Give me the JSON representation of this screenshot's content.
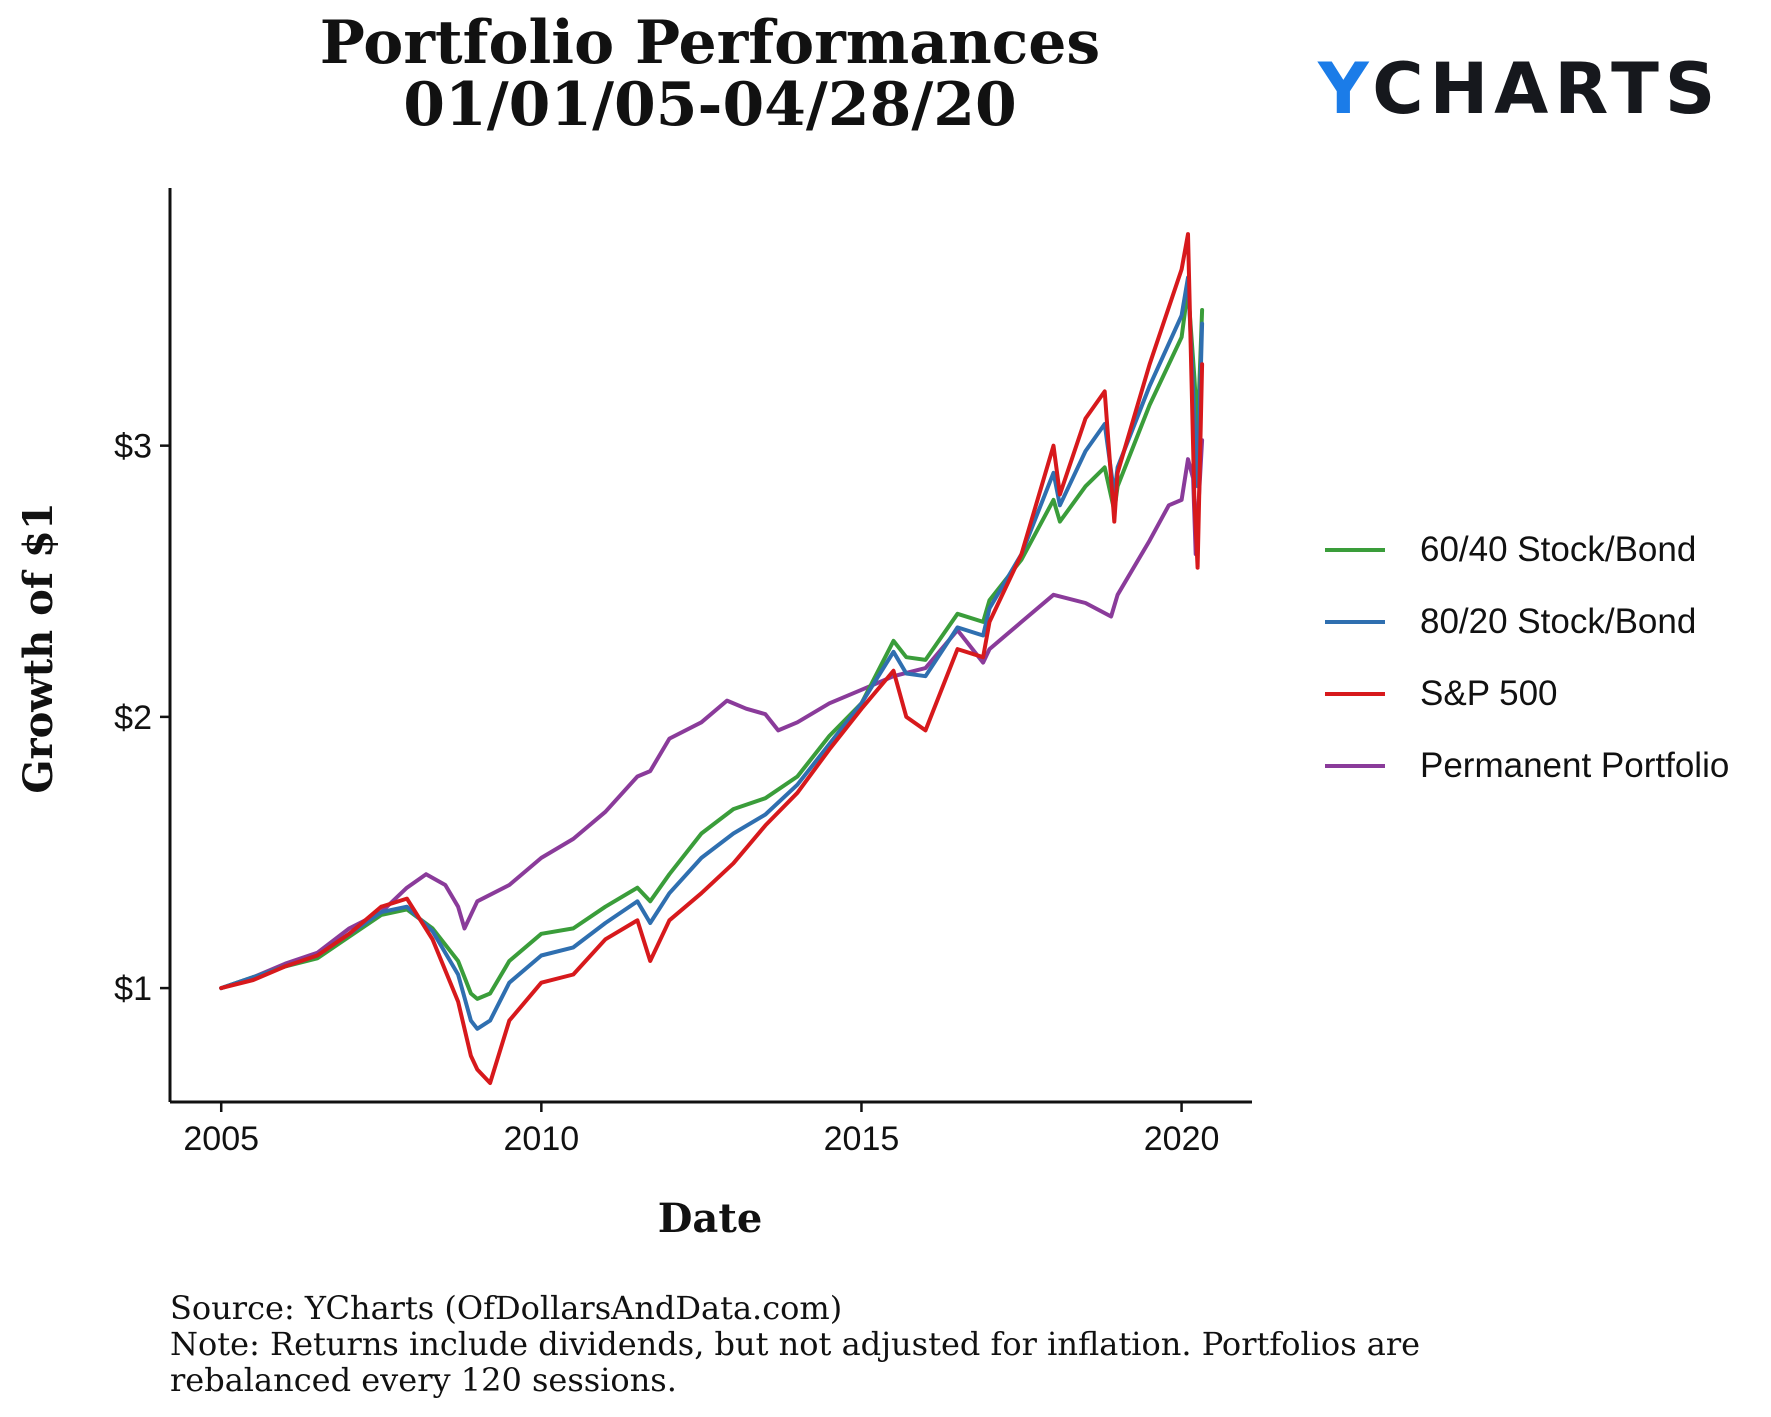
{
  "title_line1": "Portfolio Performances",
  "title_line2": "01/01/05-04/28/20",
  "logo": {
    "y": "Y",
    "rest": "CHARTS"
  },
  "footer": {
    "source": "Source: YCharts (OfDollarsAndData.com)",
    "note1": "Note: Returns include dividends, but not adjusted for inflation. Portfolios are",
    "note2": "rebalanced every 120 sessions."
  },
  "chart_data": {
    "type": "line",
    "title": "Portfolio Performances 01/01/05-04/28/20",
    "xlabel": "Date",
    "ylabel": "Growth of $1",
    "xlim": [
      2004.2,
      2021.1
    ],
    "ylim": [
      0.58,
      3.95
    ],
    "x_ticks": [
      2005,
      2010,
      2015,
      2020
    ],
    "x_tick_labels": [
      "2005",
      "2010",
      "2015",
      "2020"
    ],
    "y_ticks": [
      1,
      2,
      3
    ],
    "y_tick_labels": [
      "$1",
      "$2",
      "$3"
    ],
    "grid": false,
    "legend_position": "right",
    "series": [
      {
        "name": "60/40 Stock/Bond",
        "color": "#3a9d3a",
        "x": [
          2005.0,
          2005.5,
          2006.0,
          2006.5,
          2007.0,
          2007.5,
          2007.9,
          2008.3,
          2008.7,
          2008.9,
          2009.0,
          2009.2,
          2009.5,
          2010.0,
          2010.5,
          2011.0,
          2011.5,
          2011.7,
          2012.0,
          2012.5,
          2013.0,
          2013.5,
          2014.0,
          2014.5,
          2015.0,
          2015.5,
          2015.7,
          2016.0,
          2016.5,
          2016.9,
          2017.0,
          2017.5,
          2018.0,
          2018.1,
          2018.5,
          2018.8,
          2018.95,
          2019.0,
          2019.5,
          2020.0,
          2020.1,
          2020.2,
          2020.25,
          2020.32
        ],
        "values": [
          1.0,
          1.04,
          1.08,
          1.11,
          1.19,
          1.27,
          1.29,
          1.22,
          1.1,
          0.98,
          0.96,
          0.98,
          1.1,
          1.2,
          1.22,
          1.3,
          1.37,
          1.32,
          1.42,
          1.57,
          1.66,
          1.7,
          1.78,
          1.93,
          2.05,
          2.28,
          2.22,
          2.21,
          2.38,
          2.35,
          2.43,
          2.58,
          2.8,
          2.72,
          2.85,
          2.92,
          2.76,
          2.85,
          3.15,
          3.4,
          3.58,
          3.25,
          3.05,
          3.5
        ]
      },
      {
        "name": "80/20 Stock/Bond",
        "color": "#2f6fb0",
        "x": [
          2005.0,
          2005.5,
          2006.0,
          2006.5,
          2007.0,
          2007.5,
          2007.9,
          2008.3,
          2008.7,
          2008.9,
          2009.0,
          2009.2,
          2009.5,
          2010.0,
          2010.5,
          2011.0,
          2011.5,
          2011.7,
          2012.0,
          2012.5,
          2013.0,
          2013.5,
          2014.0,
          2014.5,
          2015.0,
          2015.5,
          2015.7,
          2016.0,
          2016.5,
          2016.9,
          2017.0,
          2017.5,
          2018.0,
          2018.1,
          2018.5,
          2018.8,
          2018.95,
          2019.0,
          2019.5,
          2020.0,
          2020.1,
          2020.2,
          2020.25,
          2020.32
        ],
        "values": [
          1.0,
          1.04,
          1.08,
          1.12,
          1.2,
          1.28,
          1.3,
          1.21,
          1.05,
          0.88,
          0.85,
          0.88,
          1.02,
          1.12,
          1.15,
          1.24,
          1.32,
          1.24,
          1.35,
          1.48,
          1.57,
          1.64,
          1.75,
          1.9,
          2.05,
          2.24,
          2.16,
          2.15,
          2.33,
          2.3,
          2.4,
          2.6,
          2.9,
          2.78,
          2.98,
          3.08,
          2.82,
          2.92,
          3.22,
          3.48,
          3.62,
          3.1,
          2.85,
          3.45
        ]
      },
      {
        "name": "S&P 500",
        "color": "#d7191c",
        "x": [
          2005.0,
          2005.5,
          2006.0,
          2006.5,
          2007.0,
          2007.5,
          2007.9,
          2008.3,
          2008.7,
          2008.9,
          2009.0,
          2009.2,
          2009.5,
          2010.0,
          2010.5,
          2011.0,
          2011.5,
          2011.7,
          2012.0,
          2012.5,
          2013.0,
          2013.5,
          2014.0,
          2014.5,
          2015.0,
          2015.5,
          2015.7,
          2016.0,
          2016.5,
          2016.9,
          2017.0,
          2017.5,
          2018.0,
          2018.1,
          2018.5,
          2018.8,
          2018.95,
          2019.0,
          2019.5,
          2020.0,
          2020.1,
          2020.2,
          2020.25,
          2020.32
        ],
        "values": [
          1.0,
          1.03,
          1.08,
          1.12,
          1.2,
          1.3,
          1.33,
          1.18,
          0.95,
          0.75,
          0.7,
          0.65,
          0.88,
          1.02,
          1.05,
          1.18,
          1.25,
          1.1,
          1.25,
          1.35,
          1.46,
          1.6,
          1.72,
          1.88,
          2.03,
          2.17,
          2.0,
          1.95,
          2.25,
          2.22,
          2.35,
          2.6,
          3.0,
          2.82,
          3.1,
          3.2,
          2.72,
          2.9,
          3.3,
          3.65,
          3.78,
          2.8,
          2.55,
          3.3
        ]
      },
      {
        "name": "Permanent Portfolio",
        "color": "#8a3b9a",
        "x": [
          2005.0,
          2005.5,
          2006.0,
          2006.5,
          2007.0,
          2007.5,
          2007.9,
          2008.2,
          2008.5,
          2008.7,
          2008.8,
          2009.0,
          2009.5,
          2010.0,
          2010.5,
          2011.0,
          2011.5,
          2011.7,
          2012.0,
          2012.5,
          2012.9,
          2013.2,
          2013.5,
          2013.7,
          2014.0,
          2014.5,
          2015.0,
          2015.5,
          2016.0,
          2016.5,
          2016.9,
          2017.0,
          2017.5,
          2018.0,
          2018.5,
          2018.9,
          2019.0,
          2019.5,
          2019.8,
          2020.0,
          2020.1,
          2020.18,
          2020.22,
          2020.32
        ],
        "values": [
          1.0,
          1.04,
          1.09,
          1.13,
          1.22,
          1.28,
          1.37,
          1.42,
          1.38,
          1.3,
          1.22,
          1.32,
          1.38,
          1.48,
          1.55,
          1.65,
          1.78,
          1.8,
          1.92,
          1.98,
          2.06,
          2.03,
          2.01,
          1.95,
          1.98,
          2.05,
          2.1,
          2.15,
          2.18,
          2.32,
          2.2,
          2.25,
          2.35,
          2.45,
          2.42,
          2.37,
          2.45,
          2.65,
          2.78,
          2.8,
          2.95,
          2.88,
          2.6,
          3.02
        ]
      }
    ]
  }
}
